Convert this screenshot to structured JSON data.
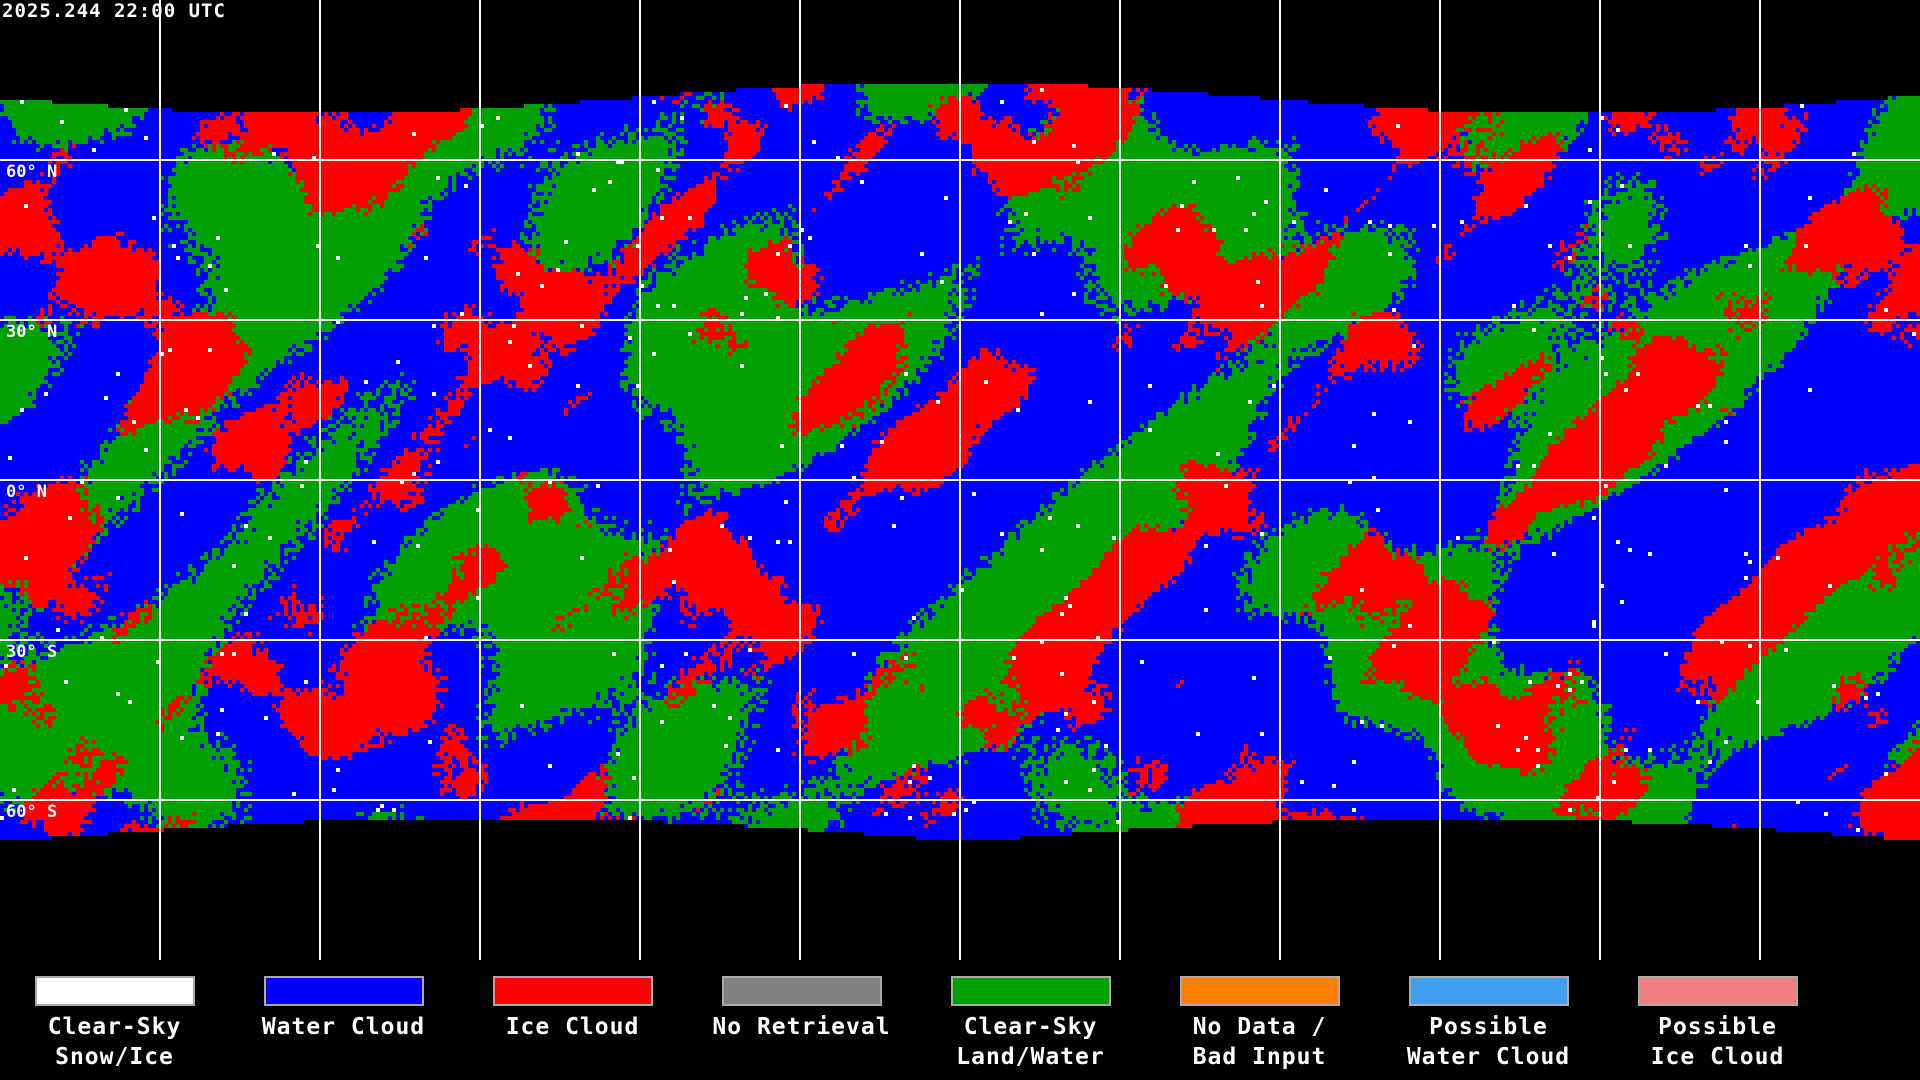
{
  "title": "2025.244 22:00 UTC",
  "latitude_labels": [
    "60° N",
    "30° N",
    "0° N",
    "30° S",
    "60° S"
  ],
  "legend": [
    {
      "line1": "Clear-Sky",
      "line2": "Snow/Ice",
      "color": "#ffffff"
    },
    {
      "line1": "Water Cloud",
      "line2": "",
      "color": "#0000ff"
    },
    {
      "line1": "Ice Cloud",
      "line2": "",
      "color": "#ff0000"
    },
    {
      "line1": "No Retrieval",
      "line2": "",
      "color": "#808080"
    },
    {
      "line1": "Clear-Sky",
      "line2": "Land/Water",
      "color": "#00a000"
    },
    {
      "line1": "No Data /",
      "line2": "Bad Input",
      "color": "#ff8000"
    },
    {
      "line1": "Possible",
      "line2": "Water Cloud",
      "color": "#40a0f0"
    },
    {
      "line1": "Possible",
      "line2": "Ice Cloud",
      "color": "#f08080"
    }
  ]
}
